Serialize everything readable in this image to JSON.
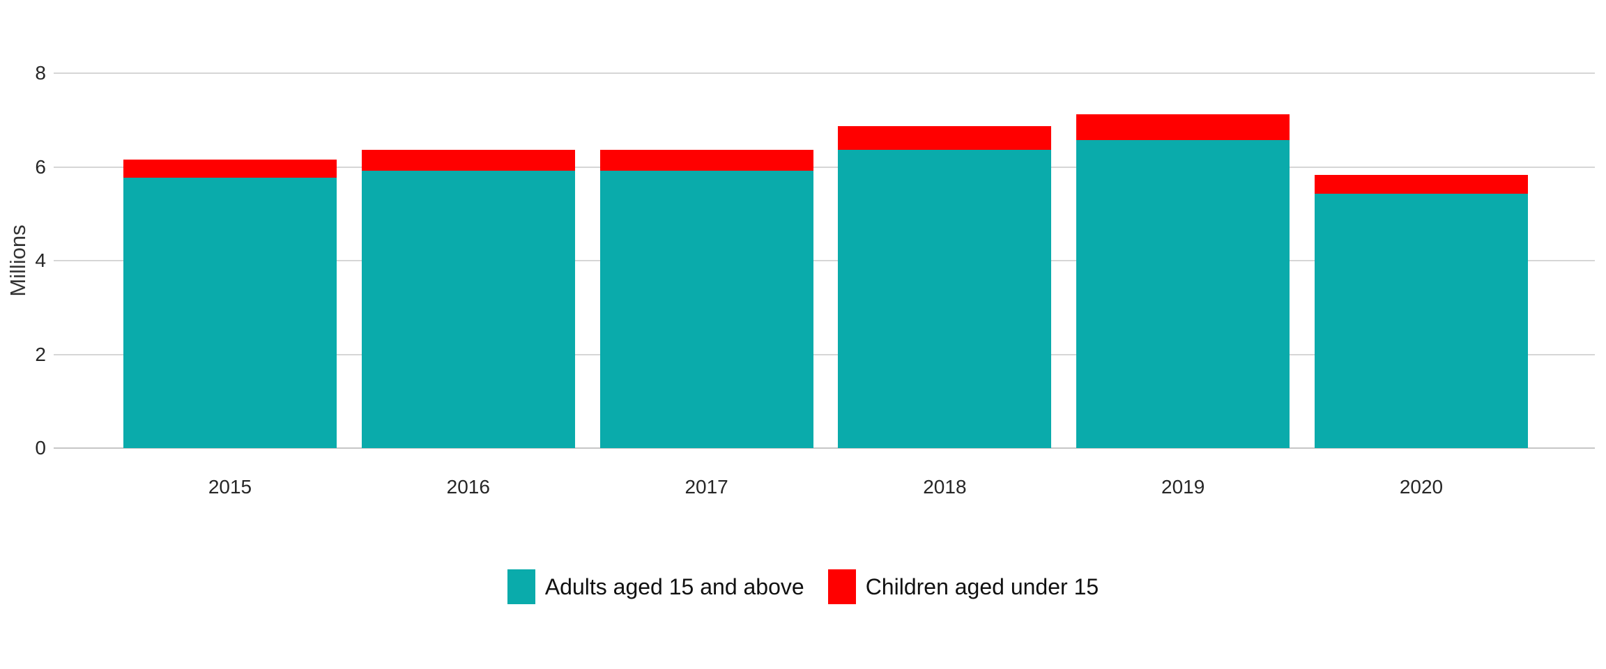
{
  "chart_data": {
    "type": "bar",
    "stacked": true,
    "categories": [
      "2015",
      "2016",
      "2017",
      "2018",
      "2019",
      "2020"
    ],
    "series": [
      {
        "key": "adults",
        "name": "Adults aged 15 and above",
        "color": "#0aabab",
        "values": [
          5.77,
          5.92,
          5.92,
          6.36,
          6.57,
          5.43
        ]
      },
      {
        "key": "children",
        "name": "Children aged under 15",
        "color": "#ff0000",
        "values": [
          0.39,
          0.45,
          0.45,
          0.51,
          0.55,
          0.4
        ]
      }
    ],
    "ylabel": "Millions",
    "yticks": [
      0,
      2,
      4,
      6,
      8
    ],
    "ylim": [
      0,
      8
    ],
    "grid": "horizontal",
    "gridline_color": "#d6d6d6",
    "axis_line_color": "#c6c6c6",
    "background": "#ffffff",
    "text_color": "#262626",
    "legend_position": "bottom"
  }
}
